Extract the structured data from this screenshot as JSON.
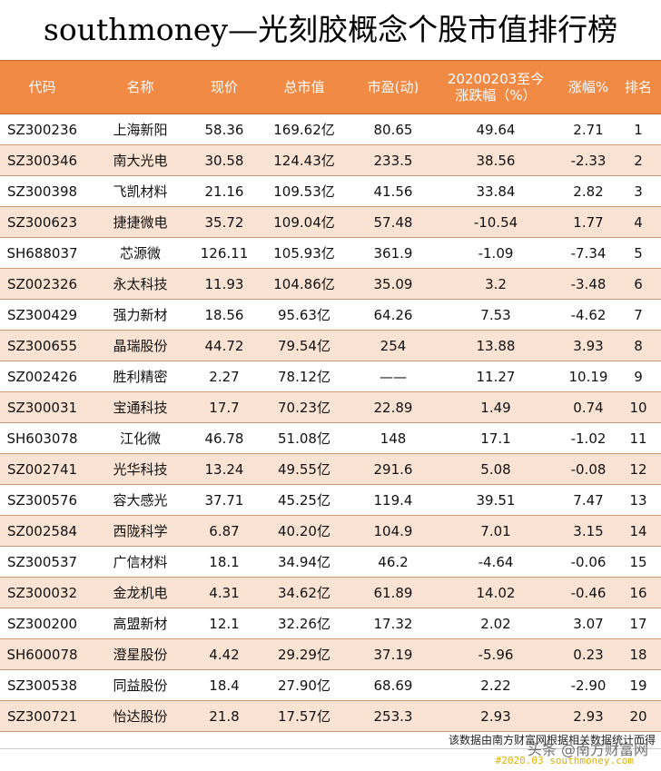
{
  "title": "southmoney—光刻胶概念个股市值排行榜",
  "headers": [
    "代码",
    "名称",
    "现价",
    "总市值",
    "市盈(动)",
    "20200203至今涨跌幅（%）",
    "涨幅%",
    "排名"
  ],
  "header_line1_col5": "20200203至今",
  "header_line2_col5": "涨跌幅（%）",
  "rows": [
    [
      "SZ300236",
      "上海新阳",
      "58.36",
      "169.62亿",
      "80.65",
      "49.64",
      "2.71",
      "1"
    ],
    [
      "SZ300346",
      "南大光电",
      "30.58",
      "124.43亿",
      "233.5",
      "38.56",
      "-2.33",
      "2"
    ],
    [
      "SZ300398",
      "飞凯材料",
      "21.16",
      "109.53亿",
      "41.56",
      "33.84",
      "2.82",
      "3"
    ],
    [
      "SZ300623",
      "捷捷微电",
      "35.72",
      "109.04亿",
      "57.48",
      "-10.54",
      "1.77",
      "4"
    ],
    [
      "SH688037",
      "芯源微",
      "126.11",
      "105.93亿",
      "361.9",
      "-1.09",
      "-7.34",
      "5"
    ],
    [
      "SZ002326",
      "永太科技",
      "11.93",
      "104.86亿",
      "35.09",
      "3.2",
      "-3.48",
      "6"
    ],
    [
      "SZ300429",
      "强力新材",
      "18.56",
      "95.63亿",
      "64.26",
      "7.53",
      "-4.62",
      "7"
    ],
    [
      "SZ300655",
      "晶瑞股份",
      "44.72",
      "79.54亿",
      "254",
      "13.88",
      "3.93",
      "8"
    ],
    [
      "SZ002426",
      "胜利精密",
      "2.27",
      "78.12亿",
      "——",
      "11.27",
      "10.19",
      "9"
    ],
    [
      "SZ300031",
      "宝通科技",
      "17.7",
      "70.23亿",
      "22.89",
      "1.49",
      "0.74",
      "10"
    ],
    [
      "SH603078",
      "江化微",
      "46.78",
      "51.08亿",
      "148",
      "17.1",
      "-1.02",
      "11"
    ],
    [
      "SZ002741",
      "光华科技",
      "13.24",
      "49.55亿",
      "291.6",
      "5.08",
      "-0.08",
      "12"
    ],
    [
      "SZ300576",
      "容大感光",
      "37.71",
      "45.25亿",
      "119.4",
      "39.51",
      "7.47",
      "13"
    ],
    [
      "SZ002584",
      "西陇科学",
      "6.87",
      "40.20亿",
      "104.9",
      "7.01",
      "3.15",
      "14"
    ],
    [
      "SZ300537",
      "广信材料",
      "18.1",
      "34.94亿",
      "46.2",
      "-4.64",
      "-0.06",
      "15"
    ],
    [
      "SZ300032",
      "金龙机电",
      "4.31",
      "34.62亿",
      "61.89",
      "14.02",
      "-0.46",
      "16"
    ],
    [
      "SZ300200",
      "高盟新材",
      "12.1",
      "32.26亿",
      "17.32",
      "2.02",
      "3.07",
      "17"
    ],
    [
      "SH600078",
      "澄星股份",
      "4.42",
      "29.29亿",
      "37.19",
      "-5.96",
      "0.23",
      "18"
    ],
    [
      "SZ300538",
      "同益股份",
      "18.4",
      "27.90亿",
      "68.69",
      "2.22",
      "-2.90",
      "19"
    ],
    [
      "SZ300721",
      "怡达股份",
      "21.8",
      "17.57亿",
      "253.3",
      "2.93",
      "2.93",
      "20"
    ]
  ],
  "footnote": "该数据由南方财富网根据相关数据统计而得",
  "watermark": "头条 @南方财富网",
  "watermark_sub": "#2020.03 southmoney.com"
}
